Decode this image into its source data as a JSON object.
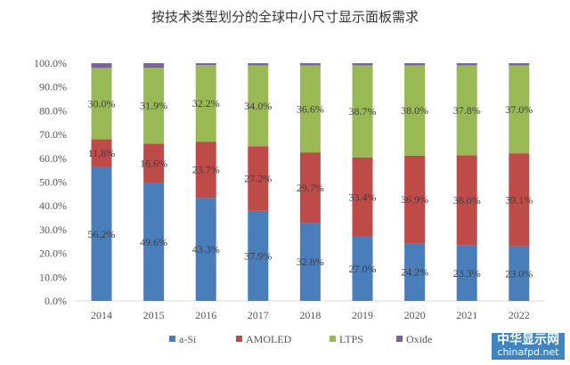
{
  "logo": {
    "line1": "中华显示网",
    "line2": "chinafpd.net"
  },
  "chart_data": {
    "type": "bar",
    "stacked": true,
    "title": "按技术类型划分的全球中小尺寸显示面板需求",
    "categories": [
      "2014",
      "2015",
      "2016",
      "2017",
      "2018",
      "2019",
      "2020",
      "2021",
      "2022"
    ],
    "ylim": [
      0,
      100
    ],
    "yticks": [
      "0.0%",
      "10.0%",
      "20.0%",
      "30.0%",
      "40.0%",
      "50.0%",
      "60.0%",
      "70.0%",
      "80.0%",
      "90.0%",
      "100.0%"
    ],
    "legend_position": "bottom",
    "series": [
      {
        "name": "a-Si",
        "color": "#4a7ebb",
        "values": [
          56.2,
          49.6,
          43.3,
          37.9,
          32.8,
          27.0,
          24.2,
          23.3,
          23.0
        ],
        "labels": [
          "56.2%",
          "49.6%",
          "43.3%",
          "37.9%",
          "32.8%",
          "27.0%",
          "24.2%",
          "23.3%",
          "23.0%"
        ]
      },
      {
        "name": "AMOLED",
        "color": "#be4b48",
        "values": [
          11.8,
          16.6,
          23.7,
          27.2,
          29.7,
          33.4,
          36.9,
          38.0,
          39.1
        ],
        "labels": [
          "11.8%",
          "16.6%",
          "23.7%",
          "27.2%",
          "29.7%",
          "33.4%",
          "36.9%",
          "38.0%",
          "39.1%"
        ]
      },
      {
        "name": "LTPS",
        "color": "#98b954",
        "values": [
          30.0,
          31.9,
          32.2,
          34.0,
          36.6,
          38.7,
          38.0,
          37.8,
          37.0
        ],
        "labels": [
          "30.0%",
          "31.9%",
          "32.2%",
          "34.0%",
          "36.6%",
          "38.7%",
          "38.0%",
          "37.8%",
          "37.0%"
        ]
      },
      {
        "name": "Oxide",
        "color": "#7d60a0",
        "values": [
          2.0,
          1.9,
          0.8,
          0.9,
          0.9,
          0.9,
          0.9,
          0.9,
          0.9
        ]
      }
    ]
  }
}
